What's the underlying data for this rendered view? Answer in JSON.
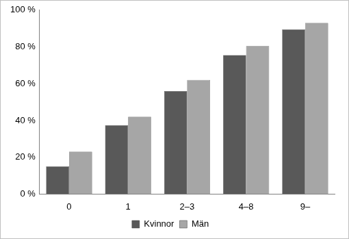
{
  "chart_data": {
    "type": "bar",
    "categories": [
      "0",
      "1",
      "2–3",
      "4–8",
      "9–"
    ],
    "series": [
      {
        "name": "Kvinnor",
        "color": "#595959",
        "values": [
          15,
          37.5,
          56,
          75.5,
          89.5
        ]
      },
      {
        "name": "Män",
        "color": "#a6a6a6",
        "values": [
          23,
          42,
          62,
          80.5,
          93
        ]
      }
    ],
    "ylim": [
      0,
      100
    ],
    "yticks": [
      {
        "value": 0,
        "label": "0 %"
      },
      {
        "value": 20,
        "label": "20 %"
      },
      {
        "value": 40,
        "label": "40 %"
      },
      {
        "value": 60,
        "label": "60 %"
      },
      {
        "value": 80,
        "label": "80 %"
      },
      {
        "value": 100,
        "label": "100 %"
      }
    ],
    "grid": false,
    "legend": "bottom"
  }
}
